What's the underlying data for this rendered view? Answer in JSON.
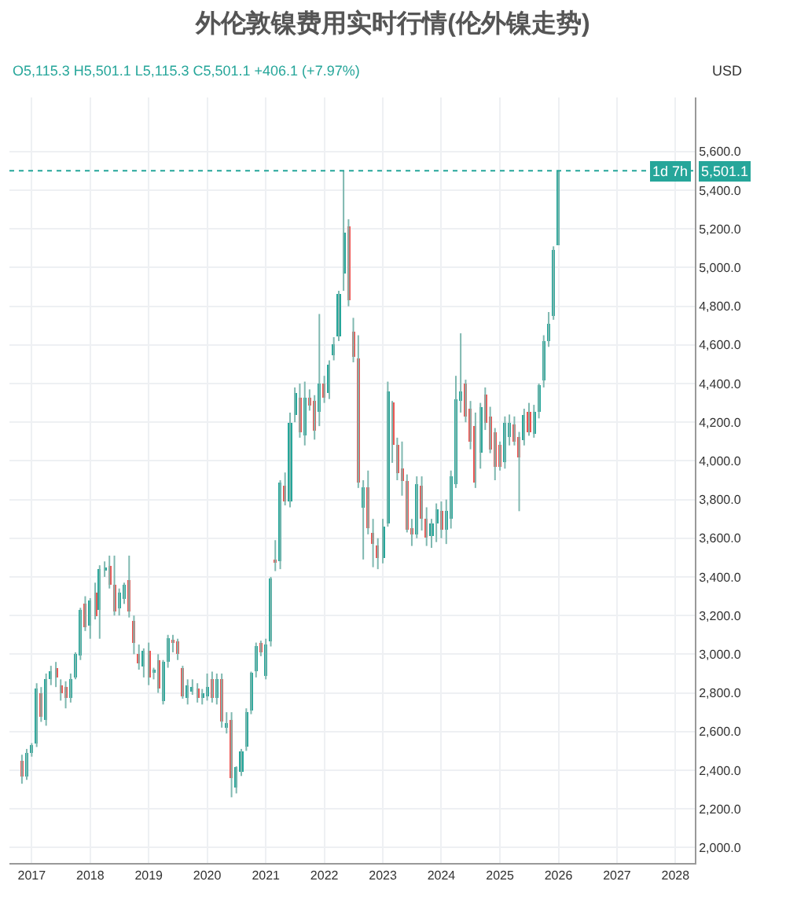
{
  "chart_data": {
    "type": "candlestick",
    "title": "外伦敦镍费用实时行情(伦外镍走势)",
    "subtitle": "O5,115.3 H5,501.1 L5,115.3 C5,501.1 +406.1 (+7.97%)",
    "ylabel": "USD",
    "annotations": [
      "1d 7h"
    ],
    "x": [
      "2016-11",
      "2016-12",
      "2017-01",
      "2017-02",
      "2017-03",
      "2017-04",
      "2017-05",
      "2017-06",
      "2017-07",
      "2017-08",
      "2017-09",
      "2017-10",
      "2017-11",
      "2017-12",
      "2018-01",
      "2018-02",
      "2018-03",
      "2018-04",
      "2018-05",
      "2018-06",
      "2018-07",
      "2018-08",
      "2018-09",
      "2018-10",
      "2018-11",
      "2018-12",
      "2019-01",
      "2019-02",
      "2019-03",
      "2019-04",
      "2019-05",
      "2019-06",
      "2019-07",
      "2019-08",
      "2019-09",
      "2019-10",
      "2019-11",
      "2019-12",
      "2020-01",
      "2020-02",
      "2020-03",
      "2020-04",
      "2020-05",
      "2020-06",
      "2020-07",
      "2020-08",
      "2020-09",
      "2020-10",
      "2020-11",
      "2020-12",
      "2021-01",
      "2021-02",
      "2021-03",
      "2021-04",
      "2021-05",
      "2021-06",
      "2021-07",
      "2021-08",
      "2021-09",
      "2021-10",
      "2021-11",
      "2021-12",
      "2022-01",
      "2022-02",
      "2022-03",
      "2022-04",
      "2022-05",
      "2022-06",
      "2022-07",
      "2022-08",
      "2022-09",
      "2022-10",
      "2022-11",
      "2022-12",
      "2023-01",
      "2023-02",
      "2023-03",
      "2023-04",
      "2023-05",
      "2023-06",
      "2023-07",
      "2023-08",
      "2023-09",
      "2023-10",
      "2023-11",
      "2023-12",
      "2024-01",
      "2024-02",
      "2024-03",
      "2024-04",
      "2024-05",
      "2024-06",
      "2024-07",
      "2024-08",
      "2024-09",
      "2024-10",
      "2024-11",
      "2024-12",
      "2025-01",
      "2025-02",
      "2025-03",
      "2025-04",
      "2025-05",
      "2025-06",
      "2025-07",
      "2025-08",
      "2025-09",
      "2025-10",
      "2025-11",
      "2025-12",
      "2026-01"
    ],
    "ohlc": [
      [
        2450,
        2480,
        2330,
        2370
      ],
      [
        2370,
        2510,
        2350,
        2490
      ],
      [
        2490,
        2540,
        2470,
        2530
      ],
      [
        2540,
        2850,
        2520,
        2820
      ],
      [
        2800,
        2830,
        2650,
        2680
      ],
      [
        2660,
        2900,
        2630,
        2870
      ],
      [
        2870,
        2940,
        2840,
        2910
      ],
      [
        2930,
        2960,
        2830,
        2880
      ],
      [
        2840,
        2870,
        2760,
        2800
      ],
      [
        2830,
        2860,
        2720,
        2770
      ],
      [
        2770,
        2900,
        2750,
        2870
      ],
      [
        2880,
        3010,
        2870,
        3000
      ],
      [
        2990,
        3240,
        2970,
        3230
      ],
      [
        3260,
        3300,
        3120,
        3140
      ],
      [
        3150,
        3290,
        3080,
        3280
      ],
      [
        3320,
        3370,
        3180,
        3200
      ],
      [
        3230,
        3460,
        3080,
        3440
      ],
      [
        3430,
        3480,
        3400,
        3450
      ],
      [
        3460,
        3510,
        3340,
        3360
      ],
      [
        3360,
        3510,
        3200,
        3220
      ],
      [
        3240,
        3340,
        3200,
        3320
      ],
      [
        3290,
        3370,
        3260,
        3360
      ],
      [
        3380,
        3510,
        3190,
        3220
      ],
      [
        3170,
        3200,
        3000,
        3060
      ],
      [
        3000,
        3050,
        2920,
        2950
      ],
      [
        2940,
        3030,
        2880,
        3020
      ],
      [
        3020,
        3060,
        2840,
        2880
      ],
      [
        2900,
        2930,
        2870,
        2920
      ],
      [
        2970,
        3000,
        2800,
        2820
      ],
      [
        2760,
        2970,
        2740,
        2960
      ],
      [
        2960,
        3100,
        2930,
        3080
      ],
      [
        3070,
        3100,
        3010,
        3060
      ],
      [
        3070,
        3080,
        2970,
        3000
      ],
      [
        2930,
        2940,
        2770,
        2780
      ],
      [
        2770,
        2870,
        2740,
        2840
      ],
      [
        2810,
        2870,
        2790,
        2830
      ],
      [
        2820,
        2850,
        2750,
        2770
      ],
      [
        2770,
        2820,
        2740,
        2800
      ],
      [
        2780,
        2900,
        2760,
        2830
      ],
      [
        2870,
        2910,
        2750,
        2770
      ],
      [
        2770,
        2900,
        2740,
        2870
      ],
      [
        2870,
        2900,
        2620,
        2650
      ],
      [
        2620,
        2700,
        2590,
        2640
      ],
      [
        2660,
        2700,
        2260,
        2360
      ],
      [
        2310,
        2420,
        2280,
        2420
      ],
      [
        2390,
        2510,
        2370,
        2500
      ],
      [
        2520,
        2720,
        2500,
        2700
      ],
      [
        2710,
        2910,
        2690,
        2900
      ],
      [
        2910,
        3060,
        2880,
        3040
      ],
      [
        3060,
        3070,
        2990,
        3010
      ],
      [
        2890,
        3080,
        2870,
        3050
      ],
      [
        3070,
        3400,
        3040,
        3390
      ],
      [
        3490,
        3590,
        3430,
        3470
      ],
      [
        3480,
        3900,
        3440,
        3885
      ],
      [
        3870,
        3940,
        3770,
        3790
      ],
      [
        3790,
        4250,
        3760,
        4200
      ],
      [
        4240,
        4380,
        4200,
        4350
      ],
      [
        4330,
        4400,
        4120,
        4150
      ],
      [
        4130,
        4410,
        4080,
        4330
      ],
      [
        4330,
        4370,
        4260,
        4290
      ],
      [
        4310,
        4340,
        4110,
        4160
      ],
      [
        4250,
        4760,
        4180,
        4400
      ],
      [
        4400,
        4440,
        4300,
        4330
      ],
      [
        4350,
        4520,
        4320,
        4500
      ],
      [
        4550,
        4640,
        4520,
        4600
      ],
      [
        4640,
        4880,
        4620,
        4860
      ],
      [
        4970,
        5500,
        4880,
        5180
      ],
      [
        5210,
        5250,
        4800,
        4830
      ],
      [
        4670,
        4740,
        4510,
        4540
      ],
      [
        4530,
        4650,
        3860,
        3890
      ],
      [
        3760,
        3900,
        3490,
        3860
      ],
      [
        3860,
        3950,
        3620,
        3650
      ],
      [
        3630,
        3700,
        3450,
        3570
      ],
      [
        3560,
        3600,
        3440,
        3500
      ],
      [
        3500,
        3700,
        3470,
        3660
      ],
      [
        3680,
        4410,
        3660,
        4360
      ],
      [
        4300,
        4310,
        3990,
        4080
      ],
      [
        4080,
        4120,
        3900,
        3940
      ],
      [
        3960,
        4100,
        3820,
        3900
      ],
      [
        3900,
        3930,
        3630,
        3640
      ],
      [
        3650,
        3700,
        3560,
        3620
      ],
      [
        3620,
        3920,
        3600,
        3880
      ],
      [
        3870,
        3920,
        3640,
        3700
      ],
      [
        3700,
        3760,
        3560,
        3600
      ],
      [
        3610,
        3700,
        3550,
        3680
      ],
      [
        3680,
        3780,
        3580,
        3750
      ],
      [
        3740,
        3790,
        3600,
        3640
      ],
      [
        3640,
        3800,
        3570,
        3740
      ],
      [
        3700,
        3950,
        3650,
        3920
      ],
      [
        3880,
        4440,
        3860,
        4320
      ],
      [
        4310,
        4660,
        4250,
        4360
      ],
      [
        4400,
        4420,
        4200,
        4230
      ],
      [
        4270,
        4310,
        4060,
        4100
      ],
      [
        4180,
        4250,
        3860,
        3890
      ],
      [
        4040,
        4300,
        3960,
        4280
      ],
      [
        4340,
        4380,
        4160,
        4200
      ],
      [
        4230,
        4280,
        4040,
        4060
      ],
      [
        4150,
        4170,
        3900,
        3970
      ],
      [
        4080,
        4100,
        3950,
        3970
      ],
      [
        3990,
        4230,
        3960,
        4200
      ],
      [
        4120,
        4240,
        4080,
        4200
      ],
      [
        4190,
        4230,
        4080,
        4100
      ],
      [
        4120,
        4150,
        3740,
        4020
      ],
      [
        4110,
        4270,
        4080,
        4240
      ],
      [
        4250,
        4300,
        4130,
        4150
      ],
      [
        4140,
        4290,
        4120,
        4250
      ],
      [
        4250,
        4400,
        4220,
        4390
      ],
      [
        4420,
        4650,
        4380,
        4620
      ],
      [
        4620,
        4770,
        4590,
        4710
      ],
      [
        4750,
        5110,
        4730,
        5095.2
      ],
      [
        5115.3,
        5501.1,
        5115.3,
        5501.1
      ]
    ],
    "ylim": [
      1920,
      5880
    ],
    "yticks": [
      {
        "value": 2000,
        "label": "2,000.0"
      },
      {
        "value": 2200,
        "label": "2,200.0"
      },
      {
        "value": 2400,
        "label": "2,400.0"
      },
      {
        "value": 2600,
        "label": "2,600.0"
      },
      {
        "value": 2800,
        "label": "2,800.0"
      },
      {
        "value": 3000,
        "label": "3,000.0"
      },
      {
        "value": 3200,
        "label": "3,200.0"
      },
      {
        "value": 3400,
        "label": "3,400.0"
      },
      {
        "value": 3600,
        "label": "3,600.0"
      },
      {
        "value": 3800,
        "label": "3,800.0"
      },
      {
        "value": 4000,
        "label": "4,000.0"
      },
      {
        "value": 4200,
        "label": "4,200.0"
      },
      {
        "value": 4400,
        "label": "4,400.0"
      },
      {
        "value": 4600,
        "label": "4,600.0"
      },
      {
        "value": 4800,
        "label": "4,800.0"
      },
      {
        "value": 5000,
        "label": "5,000.0"
      },
      {
        "value": 5200,
        "label": "5,200.0"
      },
      {
        "value": 5400,
        "label": "5,400.0"
      },
      {
        "value": 5600,
        "label": "5,600.0"
      }
    ],
    "xlim": [
      "2016-08-15",
      "2028-05-01"
    ],
    "xticks": [
      "2017",
      "2018",
      "2019",
      "2020",
      "2021",
      "2022",
      "2023",
      "2024",
      "2025",
      "2026",
      "2027",
      "2028"
    ],
    "ref_lines": [
      {
        "axis": "y",
        "value": 5501.1,
        "label": "5,501.1",
        "color": "#26a69a",
        "line_style": "dotted"
      }
    ],
    "grid": true,
    "legend": false
  }
}
